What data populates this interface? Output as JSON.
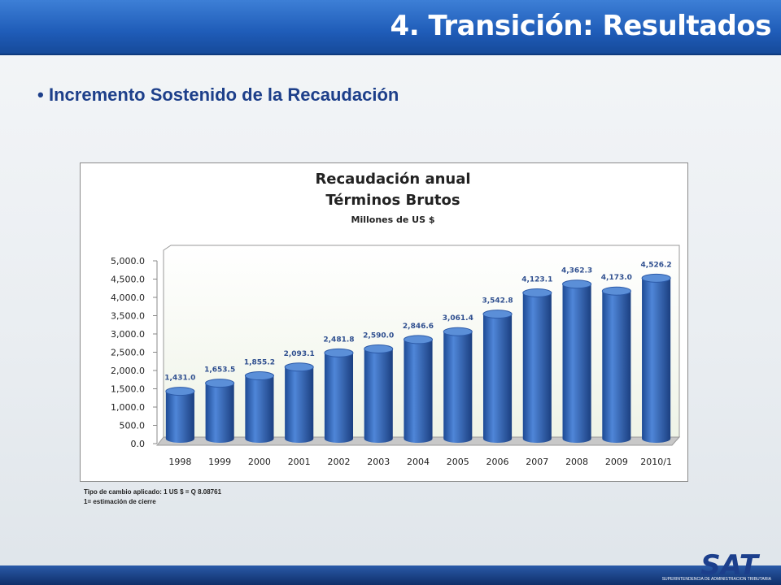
{
  "header": {
    "title": "4. Transición: Resultados"
  },
  "bullet": "Incremento Sostenido de la Recaudación",
  "chart_data": {
    "type": "bar",
    "title": "Recaudación anual",
    "subtitle": "Términos Brutos",
    "unit_label": "Millones de US $",
    "categories": [
      "1998",
      "1999",
      "2000",
      "2001",
      "2002",
      "2003",
      "2004",
      "2005",
      "2006",
      "2007",
      "2008",
      "2009",
      "2010/1"
    ],
    "values": [
      1431.0,
      1653.5,
      1855.2,
      2093.1,
      2481.8,
      2590.0,
      2846.6,
      3061.4,
      3542.8,
      4123.1,
      4362.3,
      4173.0,
      4526.2
    ],
    "value_labels": [
      "1,431.0",
      "1,653.5",
      "1,855.2",
      "2,093.1",
      "2,481.8",
      "2,590.0",
      "2,846.6",
      "3,061.4",
      "3,542.8",
      "4,123.1",
      "4,362.3",
      "4,173.0",
      "4,526.2"
    ],
    "color": "#3a6fc4",
    "ylim": [
      0,
      5000
    ],
    "yticks": [
      {
        "value": 0,
        "label": "0.0"
      },
      {
        "value": 500,
        "label": "500.0"
      },
      {
        "value": 1000,
        "label": "1,000.0"
      },
      {
        "value": 1500,
        "label": "1,500.0"
      },
      {
        "value": 2000,
        "label": "2,000.0"
      },
      {
        "value": 2500,
        "label": "2,500.0"
      },
      {
        "value": 3000,
        "label": "3,000.0"
      },
      {
        "value": 3500,
        "label": "3,500.0"
      },
      {
        "value": 4000,
        "label": "4,000.0"
      },
      {
        "value": 4500,
        "label": "4,500.0"
      },
      {
        "value": 5000,
        "label": "5,000.0"
      }
    ]
  },
  "notes": [
    "Tipo de cambio aplicado: 1 US $ = Q 8.08761",
    "1= estimación de cierre"
  ],
  "footer": {
    "logo": "SAT",
    "tagline": "SUPERINTENDENCIA DE ADMINISTRACION TRIBUTARIA"
  }
}
